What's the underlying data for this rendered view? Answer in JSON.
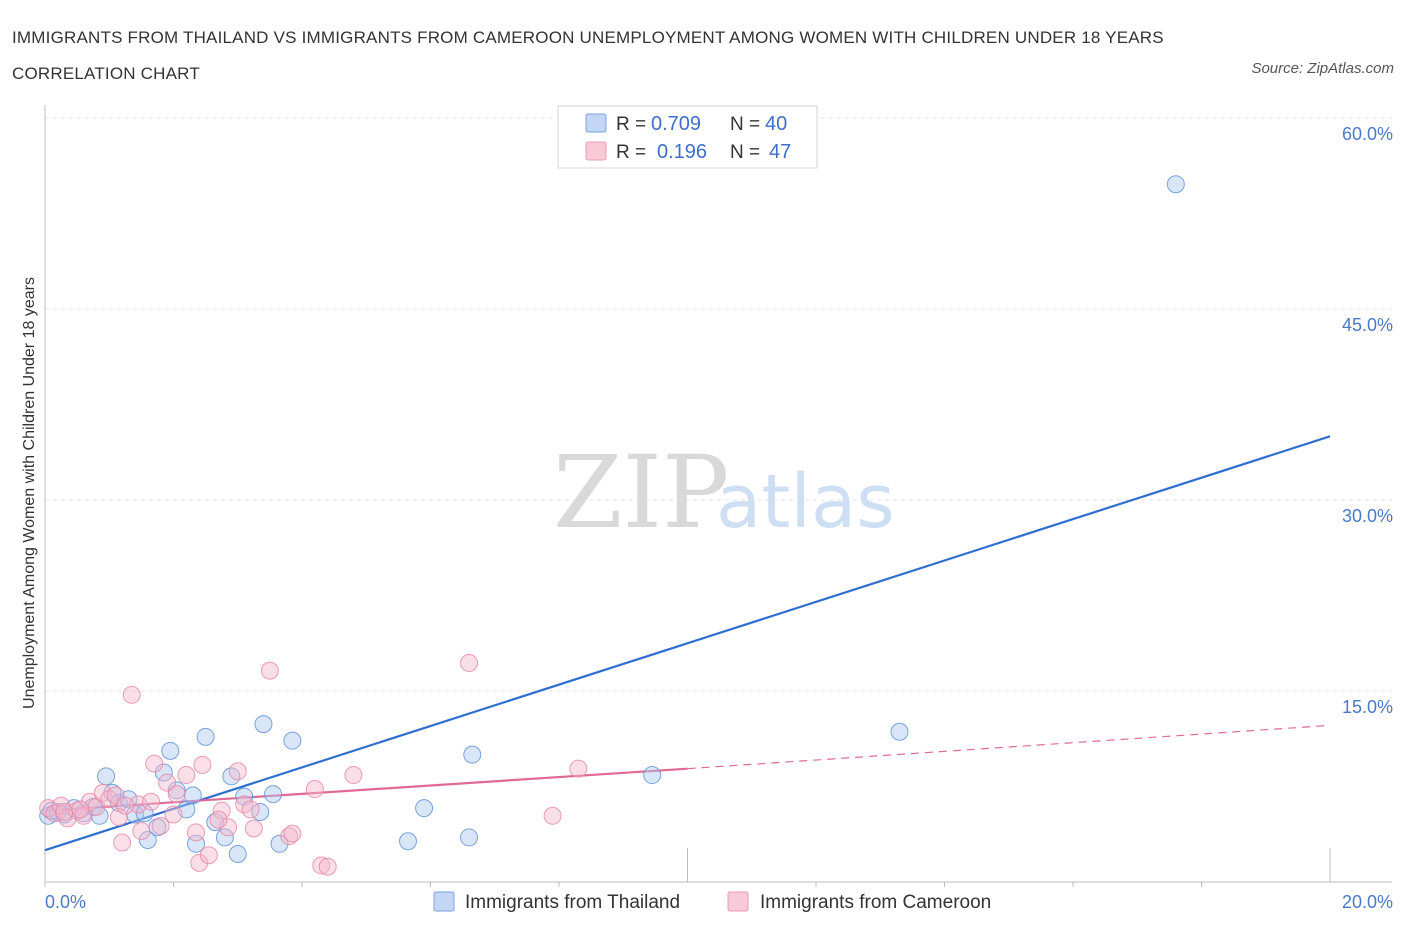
{
  "title": "IMMIGRANTS FROM THAILAND VS IMMIGRANTS FROM CAMEROON UNEMPLOYMENT AMONG WOMEN WITH CHILDREN UNDER 18 YEARS CORRELATION CHART",
  "source": "Source: ZipAtlas.com",
  "watermark": {
    "zip": "ZIP",
    "atlas": "atlas"
  },
  "colors": {
    "thailand": "#5b8fd8",
    "thailand_fill": "#aac8f0",
    "cameroon": "#e784a4",
    "cameroon_fill": "#f5b9cb",
    "thailand_line": "#2f6fcf",
    "cameroon_line": "#e06a95",
    "tick_label": "#4a79c8"
  },
  "legend": {
    "thailand": {
      "r_label": "R =",
      "r_value": "0.709",
      "n_label": "N =",
      "n_value": "40"
    },
    "cameroon": {
      "r_label": "R =",
      "r_value": "0.196",
      "n_label": "N =",
      "n_value": "47"
    }
  },
  "chart_data": {
    "type": "scatter",
    "title": "IMMIGRANTS FROM THAILAND VS IMMIGRANTS FROM CAMEROON UNEMPLOYMENT AMONG WOMEN WITH CHILDREN UNDER 18 YEARS CORRELATION CHART",
    "xlabel": "",
    "ylabel": "Unemployment Among Women with Children Under 18 years",
    "xlim": [
      0,
      20
    ],
    "ylim": [
      0,
      60
    ],
    "x_tick_labels": [
      "0.0%",
      "20.0%"
    ],
    "y_tick_labels": [
      "15.0%",
      "30.0%",
      "45.0%",
      "60.0%"
    ],
    "y_ticks": [
      15,
      30,
      45,
      60
    ],
    "grid": true,
    "legend_position": "top-center",
    "series": [
      {
        "name": "Immigrants from Thailand",
        "points": [
          [
            0.05,
            5.2
          ],
          [
            0.1,
            5.6
          ],
          [
            0.2,
            5.5
          ],
          [
            0.3,
            5.3
          ],
          [
            0.45,
            5.8
          ],
          [
            0.6,
            5.4
          ],
          [
            0.75,
            5.9
          ],
          [
            0.85,
            5.2
          ],
          [
            0.95,
            8.3
          ],
          [
            1.05,
            7.0
          ],
          [
            1.15,
            6.2
          ],
          [
            1.3,
            6.5
          ],
          [
            1.4,
            5.3
          ],
          [
            1.55,
            5.4
          ],
          [
            1.6,
            3.3
          ],
          [
            1.75,
            4.3
          ],
          [
            1.85,
            8.6
          ],
          [
            1.95,
            10.3
          ],
          [
            2.05,
            7.2
          ],
          [
            2.2,
            5.7
          ],
          [
            2.3,
            6.8
          ],
          [
            2.35,
            3.0
          ],
          [
            2.5,
            11.4
          ],
          [
            2.65,
            4.7
          ],
          [
            2.8,
            3.5
          ],
          [
            2.9,
            8.3
          ],
          [
            3.0,
            2.2
          ],
          [
            3.1,
            6.7
          ],
          [
            3.35,
            5.5
          ],
          [
            3.4,
            12.4
          ],
          [
            3.55,
            6.9
          ],
          [
            3.65,
            3.0
          ],
          [
            3.85,
            11.1
          ],
          [
            5.65,
            3.2
          ],
          [
            5.9,
            5.8
          ],
          [
            6.6,
            3.5
          ],
          [
            6.65,
            10.0
          ],
          [
            9.45,
            8.4
          ],
          [
            13.3,
            11.8
          ],
          [
            17.6,
            54.8
          ]
        ],
        "trend_line": [
          [
            0,
            2.5
          ],
          [
            20,
            35.0
          ]
        ]
      },
      {
        "name": "Immigrants from Cameroon",
        "points": [
          [
            0.05,
            5.8
          ],
          [
            0.15,
            5.4
          ],
          [
            0.25,
            6.0
          ],
          [
            0.35,
            5.0
          ],
          [
            0.5,
            5.6
          ],
          [
            0.6,
            5.2
          ],
          [
            0.7,
            6.3
          ],
          [
            0.8,
            5.9
          ],
          [
            0.9,
            7.0
          ],
          [
            1.0,
            6.5
          ],
          [
            1.1,
            6.8
          ],
          [
            1.15,
            5.1
          ],
          [
            1.2,
            3.1
          ],
          [
            1.35,
            14.7
          ],
          [
            1.45,
            6.1
          ],
          [
            1.5,
            4.0
          ],
          [
            1.65,
            6.3
          ],
          [
            1.7,
            9.3
          ],
          [
            1.8,
            4.4
          ],
          [
            1.9,
            7.8
          ],
          [
            2.0,
            5.3
          ],
          [
            2.05,
            6.9
          ],
          [
            2.2,
            8.4
          ],
          [
            2.35,
            3.9
          ],
          [
            2.4,
            1.5
          ],
          [
            2.45,
            9.2
          ],
          [
            2.55,
            2.1
          ],
          [
            2.75,
            5.6
          ],
          [
            2.85,
            4.3
          ],
          [
            3.0,
            8.7
          ],
          [
            3.1,
            6.1
          ],
          [
            3.2,
            5.7
          ],
          [
            3.25,
            4.2
          ],
          [
            3.5,
            16.6
          ],
          [
            3.8,
            3.6
          ],
          [
            3.85,
            3.8
          ],
          [
            4.2,
            7.3
          ],
          [
            4.3,
            1.3
          ],
          [
            4.4,
            1.2
          ],
          [
            4.8,
            8.4
          ],
          [
            6.6,
            17.2
          ],
          [
            7.9,
            5.2
          ],
          [
            8.3,
            8.9
          ],
          [
            0.3,
            5.5
          ],
          [
            0.55,
            5.7
          ],
          [
            1.25,
            6.0
          ],
          [
            2.7,
            4.9
          ]
        ],
        "trend_line": [
          [
            0,
            5.6
          ],
          [
            10,
            8.9
          ]
        ],
        "trend_line_dashed": [
          [
            10,
            8.9
          ],
          [
            20,
            12.3
          ]
        ]
      }
    ]
  }
}
